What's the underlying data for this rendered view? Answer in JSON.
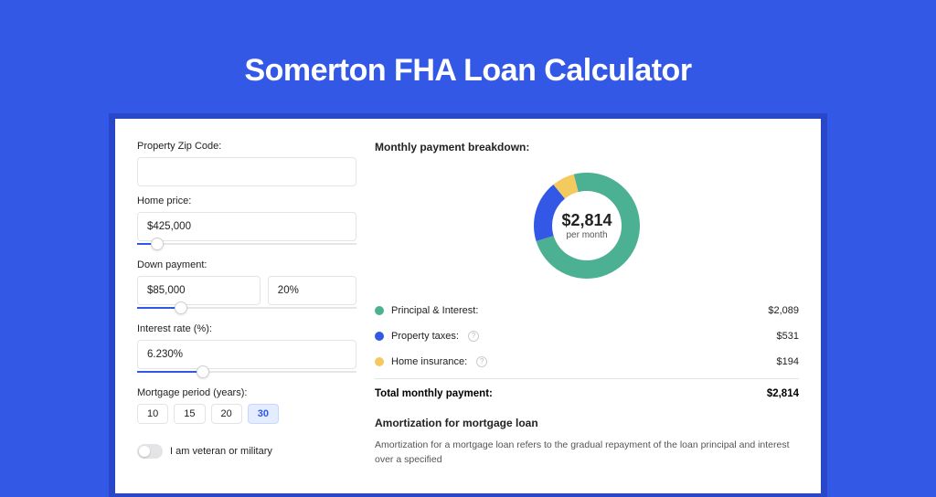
{
  "page": {
    "title": "Somerton FHA Loan Calculator",
    "bg_color": "#3358e6",
    "shadow_color": "#2947c9",
    "card_bg": "#ffffff"
  },
  "form": {
    "zip": {
      "label": "Property Zip Code:",
      "value": ""
    },
    "home_price": {
      "label": "Home price:",
      "value": "$425,000",
      "slider_pct": 9
    },
    "down_payment": {
      "label": "Down payment:",
      "amount": "$85,000",
      "percent": "20%",
      "slider_pct": 20
    },
    "interest_rate": {
      "label": "Interest rate (%):",
      "value": "6.230%",
      "slider_pct": 30
    },
    "mortgage_period": {
      "label": "Mortgage period (years):",
      "options": [
        "10",
        "15",
        "20",
        "30"
      ],
      "selected": "30"
    },
    "veteran": {
      "label": "I am veteran or military",
      "on": false
    }
  },
  "breakdown": {
    "title": "Monthly payment breakdown:",
    "donut": {
      "center_amount": "$2,814",
      "center_sub": "per month",
      "slices": [
        {
          "name": "principal_interest",
          "color": "#4cb193",
          "value": 2089
        },
        {
          "name": "property_taxes",
          "color": "#3358e6",
          "value": 531
        },
        {
          "name": "home_insurance",
          "color": "#f4c95d",
          "value": 194
        }
      ]
    },
    "rows": [
      {
        "dot": "#4cb193",
        "label": "Principal & Interest:",
        "help": false,
        "amount": "$2,089"
      },
      {
        "dot": "#3358e6",
        "label": "Property taxes:",
        "help": true,
        "amount": "$531"
      },
      {
        "dot": "#f4c95d",
        "label": "Home insurance:",
        "help": true,
        "amount": "$194"
      }
    ],
    "total": {
      "label": "Total monthly payment:",
      "amount": "$2,814"
    }
  },
  "amortization": {
    "title": "Amortization for mortgage loan",
    "body": "Amortization for a mortgage loan refers to the gradual repayment of the loan principal and interest over a specified"
  }
}
